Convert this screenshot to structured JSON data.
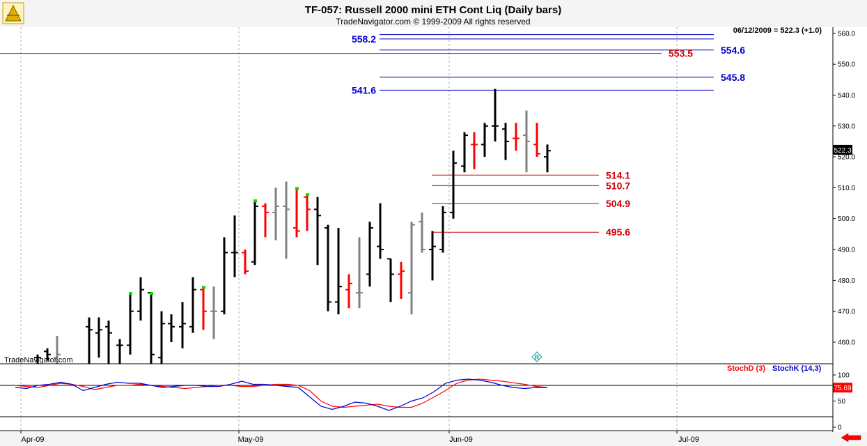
{
  "header": {
    "title": "TF-057:  Russell 2000 mini ETH Cont Liq  (Daily bars)",
    "subtitle": "TradeNavigator.com © 1999-2009 All rights reserved",
    "watermark": "TradeNavigator.com",
    "logo_icon": "trade-navigator-logo-icon"
  },
  "colors": {
    "up_bar": "#000000",
    "down_bar": "#ff0000",
    "neutral_bar": "#808080",
    "signal_tick": "#00dd00",
    "blue_level": "#0000cc",
    "red_level": "#cc0000",
    "stoch_d": "#ff0000",
    "stoch_k": "#0000cc"
  },
  "chart_data": [
    {
      "type": "ohlc",
      "title": "TF-057:  Russell 2000 mini ETH Cont Liq  (Daily bars)",
      "x_tick_labels": [
        "Apr-09",
        "May-09",
        "Jun-09",
        "Jul-09"
      ],
      "y_tick_labels": [
        "460.0",
        "470.0",
        "480.0",
        "490.0",
        "500.0",
        "510.0",
        "520.0",
        "530.0",
        "540.0",
        "550.0",
        "560.0"
      ],
      "ylim": [
        453,
        562
      ],
      "grid": true,
      "last_price_label": "522.3",
      "readout": "06/12/2009 = 522.3 (+1.0)",
      "bars": [
        {
          "x": 54,
          "o": 455,
          "h": 456,
          "l": 453,
          "c": 455,
          "color": "black"
        },
        {
          "x": 68,
          "o": 457,
          "h": 458,
          "l": 454,
          "c": 456,
          "color": "black"
        },
        {
          "x": 82,
          "o": 455,
          "h": 462,
          "l": 453,
          "c": 456,
          "color": "gray"
        },
        {
          "x": 128,
          "o": 465,
          "h": 468,
          "l": 453,
          "c": 464,
          "color": "black"
        },
        {
          "x": 142,
          "o": 463,
          "h": 468,
          "l": 455,
          "c": 464,
          "color": "black"
        },
        {
          "x": 156,
          "o": 465,
          "h": 467,
          "l": 453,
          "c": 463,
          "color": "black"
        },
        {
          "x": 172,
          "o": 459,
          "h": 461,
          "l": 453,
          "c": 459,
          "color": "black"
        },
        {
          "x": 187,
          "o": 459,
          "h": 476,
          "l": 456,
          "c": 470,
          "color": "black",
          "signal": true
        },
        {
          "x": 202,
          "o": 470,
          "h": 481,
          "l": 467,
          "c": 477,
          "color": "black"
        },
        {
          "x": 217,
          "o": 476,
          "h": 476,
          "l": 453,
          "c": 456,
          "color": "black",
          "signal": true
        },
        {
          "x": 232,
          "o": 455,
          "h": 470,
          "l": 453,
          "c": 466,
          "color": "black"
        },
        {
          "x": 246,
          "o": 466,
          "h": 469,
          "l": 460,
          "c": 465,
          "color": "black"
        },
        {
          "x": 262,
          "o": 465,
          "h": 473,
          "l": 458,
          "c": 466,
          "color": "black"
        },
        {
          "x": 277,
          "o": 465,
          "h": 481,
          "l": 463,
          "c": 477,
          "color": "black"
        },
        {
          "x": 292,
          "o": 477,
          "h": 478,
          "l": 464,
          "c": 470,
          "color": "red",
          "signal": true
        },
        {
          "x": 307,
          "o": 470,
          "h": 478,
          "l": 461,
          "c": 470,
          "color": "gray"
        },
        {
          "x": 322,
          "o": 470,
          "h": 494,
          "l": 469,
          "c": 489,
          "color": "black"
        },
        {
          "x": 337,
          "o": 489,
          "h": 501,
          "l": 481,
          "c": 489,
          "color": "black"
        },
        {
          "x": 352,
          "o": 489,
          "h": 490,
          "l": 482,
          "c": 483,
          "color": "red"
        },
        {
          "x": 366,
          "o": 486,
          "h": 506,
          "l": 485,
          "c": 504,
          "color": "black",
          "signal": true
        },
        {
          "x": 381,
          "o": 504,
          "h": 505,
          "l": 494,
          "c": 502,
          "color": "red"
        },
        {
          "x": 396,
          "o": 502,
          "h": 510,
          "l": 493,
          "c": 504,
          "color": "gray"
        },
        {
          "x": 411,
          "o": 504,
          "h": 512,
          "l": 487,
          "c": 503,
          "color": "gray"
        },
        {
          "x": 426,
          "o": 497,
          "h": 510,
          "l": 494,
          "c": 496,
          "color": "red",
          "signal": true
        },
        {
          "x": 441,
          "o": 507,
          "h": 508,
          "l": 496,
          "c": 503,
          "color": "red",
          "signal": true
        },
        {
          "x": 456,
          "o": 503,
          "h": 507,
          "l": 485,
          "c": 501,
          "color": "black"
        },
        {
          "x": 471,
          "o": 497,
          "h": 498,
          "l": 470,
          "c": 473,
          "color": "black"
        },
        {
          "x": 486,
          "o": 473,
          "h": 497,
          "l": 469,
          "c": 478,
          "color": "black"
        },
        {
          "x": 501,
          "o": 477,
          "h": 482,
          "l": 471,
          "c": 479,
          "color": "red"
        },
        {
          "x": 516,
          "o": 476,
          "h": 494,
          "l": 471,
          "c": 476,
          "color": "gray"
        },
        {
          "x": 531,
          "o": 482,
          "h": 499,
          "l": 478,
          "c": 497,
          "color": "black"
        },
        {
          "x": 546,
          "o": 491,
          "h": 505,
          "l": 487,
          "c": 490,
          "color": "black"
        },
        {
          "x": 561,
          "o": 487,
          "h": 487,
          "l": 473,
          "c": 482,
          "color": "black"
        },
        {
          "x": 576,
          "o": 482,
          "h": 486,
          "l": 474,
          "c": 483,
          "color": "red"
        },
        {
          "x": 591,
          "o": 476,
          "h": 499,
          "l": 469,
          "c": 498,
          "color": "gray"
        },
        {
          "x": 606,
          "o": 499,
          "h": 502,
          "l": 489,
          "c": 490,
          "color": "gray"
        },
        {
          "x": 621,
          "o": 490,
          "h": 496,
          "l": 480,
          "c": 491,
          "color": "black"
        },
        {
          "x": 636,
          "o": 490,
          "h": 504,
          "l": 489,
          "c": 502,
          "color": "black"
        },
        {
          "x": 651,
          "o": 502,
          "h": 522,
          "l": 500,
          "c": 518,
          "color": "black"
        },
        {
          "x": 667,
          "o": 517,
          "h": 528,
          "l": 515,
          "c": 527,
          "color": "black"
        },
        {
          "x": 681,
          "o": 524,
          "h": 528,
          "l": 516,
          "c": 524,
          "color": "red"
        },
        {
          "x": 696,
          "o": 524,
          "h": 531,
          "l": 520,
          "c": 530,
          "color": "black"
        },
        {
          "x": 711,
          "o": 530,
          "h": 542,
          "l": 525,
          "c": 530,
          "color": "black"
        },
        {
          "x": 726,
          "o": 529,
          "h": 531,
          "l": 519,
          "c": 525,
          "color": "black"
        },
        {
          "x": 741,
          "o": 526,
          "h": 531,
          "l": 522,
          "c": 526,
          "color": "red"
        },
        {
          "x": 756,
          "o": 527,
          "h": 535,
          "l": 515,
          "c": 525,
          "color": "gray"
        },
        {
          "x": 771,
          "o": 524,
          "h": 531,
          "l": 520,
          "c": 521,
          "color": "red"
        },
        {
          "x": 786,
          "o": 520,
          "h": 524,
          "l": 515,
          "c": 522,
          "color": "black"
        }
      ],
      "levels": [
        {
          "value": 558.2,
          "label": "558.2",
          "color": "blue",
          "x1": 545,
          "x2": 1025,
          "label_side": "left"
        },
        {
          "value": 559.6,
          "label": "",
          "color": "blue",
          "x1": 545,
          "x2": 1025
        },
        {
          "value": 554.6,
          "label": "554.6",
          "color": "blue",
          "x1": 545,
          "x2": 1025,
          "label_side": "right"
        },
        {
          "value": 553.5,
          "label": "553.5",
          "color": "red",
          "x1": 0,
          "x2": 950,
          "label_side": "right"
        },
        {
          "value": 545.8,
          "label": "545.8",
          "color": "blue",
          "x1": 545,
          "x2": 1025,
          "label_side": "right"
        },
        {
          "value": 541.6,
          "label": "541.6",
          "color": "blue",
          "x1": 545,
          "x2": 1025,
          "label_side": "left"
        },
        {
          "value": 514.1,
          "label": "514.1",
          "color": "red",
          "x1": 620,
          "x2": 860,
          "label_side": "right"
        },
        {
          "value": 510.7,
          "label": "510.7",
          "color": "red",
          "x1": 620,
          "x2": 860,
          "label_side": "right"
        },
        {
          "value": 504.9,
          "label": "504.9",
          "color": "red",
          "x1": 620,
          "x2": 860,
          "label_side": "right"
        },
        {
          "value": 495.6,
          "label": "495.6",
          "color": "red",
          "x1": 620,
          "x2": 860,
          "label_side": "right"
        }
      ]
    },
    {
      "type": "line",
      "title": "",
      "y_tick_labels": [
        "0",
        "50",
        "100"
      ],
      "ylim": [
        0,
        100
      ],
      "reference_line": 80,
      "last_value_label": "75.69",
      "series": [
        {
          "name": "StochD (3)",
          "color": "red",
          "values": [
            80,
            78,
            76,
            80,
            84,
            82,
            78,
            72,
            76,
            80,
            80,
            82,
            80,
            78,
            76,
            74,
            76,
            78,
            80,
            80,
            78,
            78,
            80,
            82,
            82,
            80,
            70,
            50,
            40,
            38,
            40,
            42,
            44,
            40,
            38,
            38,
            46,
            58,
            70,
            84,
            90,
            92,
            90,
            88,
            85,
            82,
            78,
            76
          ]
        },
        {
          "name": "StochK (14,3)",
          "color": "blue",
          "values": [
            76,
            74,
            80,
            82,
            86,
            82,
            70,
            76,
            82,
            86,
            84,
            84,
            80,
            76,
            78,
            80,
            80,
            78,
            78,
            82,
            88,
            82,
            82,
            80,
            78,
            76,
            58,
            40,
            34,
            40,
            48,
            46,
            40,
            32,
            40,
            50,
            56,
            68,
            84,
            90,
            92,
            90,
            86,
            80,
            76,
            74,
            76,
            75.69
          ]
        }
      ]
    }
  ]
}
